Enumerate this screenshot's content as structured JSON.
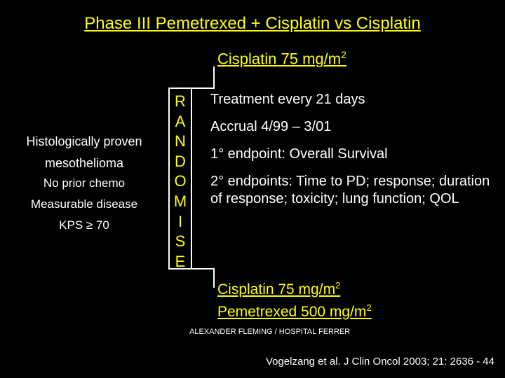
{
  "title": "Phase III Pemetrexed + Cisplatin vs Cisplatin",
  "arm_top": "Cisplatin 75 mg/m",
  "arm_top_sup": "2",
  "eligibility": {
    "l1": "Histologically proven",
    "l2": "mesothelioma",
    "l3": "No prior chemo",
    "l4": "Measurable disease",
    "l5": "KPS ≥ 70"
  },
  "randomise_letters": [
    "R",
    "A",
    "N",
    "D",
    "O",
    "M",
    "I",
    "S",
    "E"
  ],
  "details": {
    "d1": "Treatment every 21 days",
    "d2": "Accrual 4/99 – 3/01",
    "d3": "1° endpoint: Overall Survival",
    "d4": "2° endpoints: Time to PD; response; duration of response; toxicity; lung function; QOL"
  },
  "arm_bottom1": "Cisplatin 75 mg/m",
  "arm_bottom1_sup": "2",
  "arm_bottom2": "Pemetrexed 500 mg/m",
  "arm_bottom2_sup": "2",
  "footer1": "ALEXANDER FLEMING / HOSPITAL FERRER",
  "citation": "Vogelzang et al. J Clin Oncol 2003; 21: 2636 - 44"
}
